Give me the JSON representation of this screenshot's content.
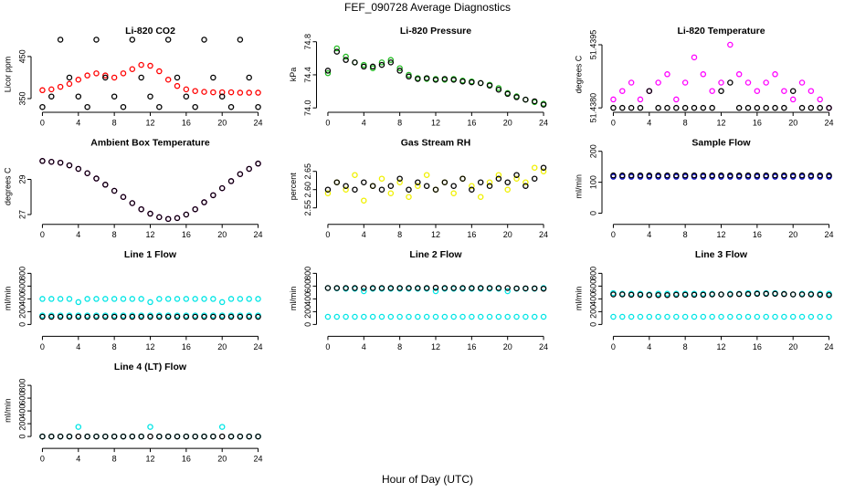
{
  "title": "FEF_090728  Average Diagnostics",
  "xlabel": "Hour of Day (UTC)",
  "chart_data": [
    {
      "type": "scatter",
      "title": "Li-820 CO2",
      "ylabel": "Licor ppm",
      "xlim": [
        -0.96,
        24.96
      ],
      "xticks": [
        0,
        4,
        8,
        12,
        16,
        20,
        24
      ],
      "ylim": [
        324,
        491
      ],
      "yticks": [
        350,
        450
      ],
      "x": [
        0,
        1,
        2,
        3,
        4,
        5,
        6,
        7,
        8,
        9,
        10,
        11,
        12,
        13,
        14,
        15,
        16,
        17,
        18,
        19,
        20,
        21,
        22,
        23,
        24
      ],
      "series": [
        {
          "color": "#ff0000",
          "values": [
            370,
            372,
            378,
            385,
            395,
            405,
            410,
            405,
            400,
            410,
            420,
            430,
            428,
            415,
            395,
            380,
            372,
            368,
            366,
            365,
            365,
            365,
            364,
            364,
            364
          ]
        },
        {
          "color": "#000000",
          "values": [
            330,
            355,
            490,
            400,
            355,
            330,
            490,
            400,
            355,
            330,
            490,
            400,
            355,
            330,
            490,
            400,
            355,
            330,
            490,
            400,
            355,
            330,
            490,
            400,
            330
          ]
        }
      ]
    },
    {
      "type": "scatter",
      "title": "Li-820 Pressure",
      "ylabel": "kPa",
      "xlim": [
        -0.96,
        24.96
      ],
      "xticks": [
        0,
        4,
        8,
        12,
        16,
        20,
        24
      ],
      "ylim": [
        73.98,
        74.83
      ],
      "yticks": [
        {
          "value": 74,
          "label": "74.0"
        },
        74.4,
        {
          "value": 74.8,
          "label": "74.8"
        }
      ],
      "x": [
        0,
        1,
        2,
        3,
        4,
        5,
        6,
        7,
        8,
        9,
        10,
        11,
        12,
        13,
        14,
        15,
        16,
        17,
        18,
        19,
        20,
        21,
        22,
        23,
        24
      ],
      "series": [
        {
          "color": "#22bb22",
          "values": [
            74.42,
            74.72,
            74.62,
            74.55,
            74.52,
            74.48,
            74.55,
            74.58,
            74.48,
            74.4,
            74.36,
            74.35,
            74.35,
            74.34,
            74.35,
            74.33,
            74.32,
            74.3,
            74.28,
            74.24,
            74.18,
            74.14,
            74.1,
            74.07,
            74.05
          ]
        },
        {
          "color": "#000000",
          "values": [
            74.45,
            74.68,
            74.58,
            74.55,
            74.5,
            74.5,
            74.52,
            74.55,
            74.45,
            74.38,
            74.35,
            74.36,
            74.34,
            74.35,
            74.34,
            74.32,
            74.31,
            74.3,
            74.27,
            74.22,
            74.17,
            74.13,
            74.1,
            74.08,
            74.04
          ]
        }
      ]
    },
    {
      "type": "scatter",
      "title": "Li-820 Temperature",
      "ylabel": "degrees C",
      "xlim": [
        -0.96,
        24.96
      ],
      "xticks": [
        0,
        4,
        8,
        12,
        16,
        20,
        24
      ],
      "ylim": [
        51.43796,
        51.43963
      ],
      "yticks": [
        {
          "value": 51.438,
          "label": "51.4380"
        },
        51.4395
      ],
      "x": [
        0,
        1,
        2,
        3,
        4,
        5,
        6,
        7,
        8,
        9,
        10,
        11,
        12,
        13,
        14,
        15,
        16,
        17,
        18,
        19,
        20,
        21,
        22,
        23,
        24
      ],
      "series": [
        {
          "color": "#ff00ff",
          "values": [
            51.4382,
            51.4384,
            51.4386,
            51.4382,
            51.4384,
            51.4386,
            51.4388,
            51.4382,
            51.4386,
            51.4392,
            51.4388,
            51.4384,
            51.4386,
            51.4395,
            51.4388,
            51.4386,
            51.4384,
            51.4386,
            51.4388,
            51.4384,
            51.4382,
            51.4386,
            51.4384,
            51.4382,
            51.438
          ]
        },
        {
          "color": "#000000",
          "values": [
            51.438,
            51.438,
            51.438,
            51.438,
            51.4384,
            51.438,
            51.438,
            51.438,
            51.438,
            51.438,
            51.438,
            51.438,
            51.4384,
            51.4386,
            51.438,
            51.438,
            51.438,
            51.438,
            51.438,
            51.438,
            51.4384,
            51.438,
            51.438,
            51.438,
            51.438
          ]
        }
      ]
    },
    {
      "type": "scatter",
      "title": "Ambient Box Temperature",
      "ylabel": "degrees C",
      "xlim": [
        -0.96,
        24.96
      ],
      "xticks": [
        0,
        4,
        8,
        12,
        16,
        20,
        24
      ],
      "ylim": [
        26.6,
        30.6
      ],
      "yticks": [
        27,
        29
      ],
      "x": [
        0,
        1,
        2,
        3,
        4,
        5,
        6,
        7,
        8,
        9,
        10,
        11,
        12,
        13,
        14,
        15,
        16,
        17,
        18,
        19,
        20,
        21,
        22,
        23,
        24
      ],
      "series": [
        {
          "color": "#ff00ff",
          "values": [
            30.05,
            30,
            29.95,
            29.8,
            29.6,
            29.35,
            29.05,
            28.7,
            28.35,
            28,
            27.65,
            27.3,
            27.05,
            26.85,
            26.75,
            26.8,
            27,
            27.3,
            27.7,
            28.1,
            28.5,
            28.9,
            29.3,
            29.6,
            29.9
          ]
        },
        {
          "color": "#000000",
          "values": [
            30.05,
            30,
            29.95,
            29.8,
            29.6,
            29.35,
            29.05,
            28.7,
            28.35,
            28,
            27.65,
            27.3,
            27.05,
            26.85,
            26.75,
            26.8,
            27,
            27.3,
            27.7,
            28.1,
            28.5,
            28.9,
            29.3,
            29.6,
            29.9
          ]
        }
      ]
    },
    {
      "type": "scatter",
      "title": "Gas Stream RH",
      "ylabel": "percent",
      "xlim": [
        -0.96,
        24.96
      ],
      "xticks": [
        0,
        4,
        8,
        12,
        16,
        20,
        24
      ],
      "ylim": [
        2.5125,
        2.705
      ],
      "yticks": [
        2.55,
        {
          "value": 2.6,
          "label": "2.60"
        },
        2.65
      ],
      "x": [
        0,
        1,
        2,
        3,
        4,
        5,
        6,
        7,
        8,
        9,
        10,
        11,
        12,
        13,
        14,
        15,
        16,
        17,
        18,
        19,
        20,
        21,
        22,
        23,
        24
      ],
      "series": [
        {
          "color": "#f0f000",
          "values": [
            2.59,
            2.62,
            2.6,
            2.64,
            2.57,
            2.61,
            2.63,
            2.59,
            2.62,
            2.58,
            2.61,
            2.64,
            2.6,
            2.62,
            2.59,
            2.63,
            2.61,
            2.58,
            2.62,
            2.64,
            2.6,
            2.63,
            2.62,
            2.66,
            2.65
          ]
        },
        {
          "color": "#000000",
          "values": [
            2.6,
            2.62,
            2.61,
            2.6,
            2.62,
            2.61,
            2.6,
            2.61,
            2.63,
            2.6,
            2.62,
            2.61,
            2.6,
            2.62,
            2.61,
            2.63,
            2.6,
            2.62,
            2.61,
            2.63,
            2.62,
            2.64,
            2.61,
            2.63,
            2.66
          ]
        }
      ]
    },
    {
      "type": "scatter",
      "title": "Sample Flow",
      "ylabel": "ml/min",
      "xlim": [
        -0.96,
        24.96
      ],
      "xticks": [
        0,
        4,
        8,
        12,
        16,
        20,
        24
      ],
      "ylim": [
        -27,
        200
      ],
      "yticks": [
        0,
        100,
        200
      ],
      "x": [
        0,
        1,
        2,
        3,
        4,
        5,
        6,
        7,
        8,
        9,
        10,
        11,
        12,
        13,
        14,
        15,
        16,
        17,
        18,
        19,
        20,
        21,
        22,
        23,
        24
      ],
      "series": [
        {
          "color": "#0000cc",
          "values": [
            118,
            118,
            118,
            118,
            118,
            118,
            118,
            118,
            118,
            118,
            118,
            118,
            118,
            118,
            118,
            118,
            118,
            118,
            118,
            118,
            118,
            118,
            118,
            118,
            118
          ]
        },
        {
          "color": "#000000",
          "values": [
            122,
            122,
            122,
            122,
            122,
            122,
            122,
            122,
            122,
            122,
            122,
            122,
            122,
            122,
            122,
            122,
            122,
            122,
            122,
            122,
            122,
            122,
            122,
            122,
            122
          ]
        }
      ]
    },
    {
      "type": "scatter",
      "title": "Line 1 Flow",
      "ylabel": "ml/min",
      "xlim": [
        -0.96,
        24.96
      ],
      "xticks": [
        0,
        4,
        8,
        12,
        16,
        20,
        24
      ],
      "ylim": [
        -143,
        957
      ],
      "yticks": [
        0,
        200,
        400,
        600,
        800
      ],
      "x": [
        0,
        1,
        2,
        3,
        4,
        5,
        6,
        7,
        8,
        9,
        10,
        11,
        12,
        13,
        14,
        15,
        16,
        17,
        18,
        19,
        20,
        21,
        22,
        23,
        24
      ],
      "series": [
        {
          "color": "#00e5e5",
          "values": [
            400,
            400,
            400,
            400,
            350,
            400,
            400,
            400,
            400,
            400,
            400,
            400,
            350,
            400,
            400,
            400,
            400,
            400,
            400,
            400,
            350,
            400,
            400,
            400,
            400
          ]
        },
        {
          "color": "#00e5e5",
          "values": [
            140,
            140,
            140,
            140,
            140,
            140,
            140,
            140,
            140,
            140,
            140,
            140,
            140,
            140,
            140,
            140,
            140,
            140,
            140,
            140,
            140,
            140,
            140,
            140,
            140
          ]
        },
        {
          "color": "#000000",
          "values": [
            120,
            120,
            120,
            120,
            120,
            120,
            120,
            120,
            120,
            120,
            120,
            120,
            120,
            120,
            120,
            120,
            120,
            120,
            120,
            120,
            120,
            120,
            120,
            120,
            120
          ]
        }
      ]
    },
    {
      "type": "scatter",
      "title": "Line 2 Flow",
      "ylabel": "ml/min",
      "xlim": [
        -0.96,
        24.96
      ],
      "xticks": [
        0,
        4,
        8,
        12,
        16,
        20,
        24
      ],
      "ylim": [
        -143,
        957
      ],
      "yticks": [
        0,
        200,
        400,
        600,
        800
      ],
      "x": [
        0,
        1,
        2,
        3,
        4,
        5,
        6,
        7,
        8,
        9,
        10,
        11,
        12,
        13,
        14,
        15,
        16,
        17,
        18,
        19,
        20,
        21,
        22,
        23,
        24
      ],
      "series": [
        {
          "color": "#00e5e5",
          "values": [
            120,
            120,
            120,
            120,
            120,
            120,
            120,
            120,
            120,
            120,
            120,
            120,
            120,
            120,
            120,
            120,
            120,
            120,
            120,
            120,
            120,
            120,
            120,
            120,
            120
          ]
        },
        {
          "color": "#00e5e5",
          "values": [
            570,
            565,
            560,
            560,
            520,
            560,
            560,
            560,
            560,
            560,
            560,
            560,
            520,
            560,
            560,
            560,
            560,
            560,
            560,
            560,
            520,
            560,
            560,
            560,
            570
          ]
        },
        {
          "color": "#000000",
          "values": [
            570,
            570,
            570,
            570,
            570,
            570,
            570,
            570,
            570,
            570,
            570,
            570,
            575,
            570,
            570,
            570,
            570,
            570,
            570,
            570,
            570,
            565,
            565,
            565,
            560
          ]
        }
      ]
    },
    {
      "type": "scatter",
      "title": "Line 3 Flow",
      "ylabel": "ml/min",
      "xlim": [
        -0.96,
        24.96
      ],
      "xticks": [
        0,
        4,
        8,
        12,
        16,
        20,
        24
      ],
      "ylim": [
        -143,
        957
      ],
      "yticks": [
        0,
        200,
        400,
        600,
        800
      ],
      "x": [
        0,
        1,
        2,
        3,
        4,
        5,
        6,
        7,
        8,
        9,
        10,
        11,
        12,
        13,
        14,
        15,
        16,
        17,
        18,
        19,
        20,
        21,
        22,
        23,
        24
      ],
      "series": [
        {
          "color": "#00e5e5",
          "values": [
            490,
            480,
            480,
            480,
            470,
            480,
            480,
            480,
            480,
            480,
            480,
            480,
            470,
            480,
            480,
            490,
            490,
            490,
            490,
            480,
            470,
            480,
            480,
            480,
            480
          ]
        },
        {
          "color": "#00e5e5",
          "values": [
            120,
            120,
            120,
            120,
            120,
            120,
            120,
            120,
            120,
            120,
            120,
            120,
            120,
            120,
            120,
            120,
            120,
            120,
            120,
            120,
            120,
            120,
            120,
            120,
            120
          ]
        },
        {
          "color": "#000000",
          "values": [
            470,
            470,
            465,
            465,
            460,
            460,
            460,
            465,
            465,
            465,
            465,
            470,
            470,
            470,
            475,
            475,
            480,
            480,
            480,
            475,
            470,
            470,
            470,
            465,
            460
          ]
        }
      ]
    },
    {
      "type": "scatter",
      "title": "Line 4 (LT) Flow",
      "ylabel": "ml/min",
      "xlim": [
        -0.96,
        24.96
      ],
      "xticks": [
        0,
        4,
        8,
        12,
        16,
        20,
        24
      ],
      "ylim": [
        -143,
        957
      ],
      "yticks": [
        0,
        200,
        400,
        600,
        800
      ],
      "x": [
        0,
        1,
        2,
        3,
        4,
        5,
        6,
        7,
        8,
        9,
        10,
        11,
        12,
        13,
        14,
        15,
        16,
        17,
        18,
        19,
        20,
        21,
        22,
        23,
        24
      ],
      "series": [
        {
          "color": "#00e5e5",
          "values": [
            0,
            0,
            0,
            0,
            150,
            0,
            0,
            0,
            0,
            0,
            0,
            0,
            150,
            0,
            0,
            0,
            0,
            0,
            0,
            0,
            150,
            0,
            0,
            0,
            0
          ]
        },
        {
          "color": "#000000",
          "values": [
            0,
            0,
            0,
            0,
            0,
            0,
            0,
            0,
            0,
            0,
            0,
            0,
            0,
            0,
            0,
            0,
            0,
            0,
            0,
            0,
            0,
            0,
            0,
            0,
            0
          ]
        }
      ]
    }
  ]
}
